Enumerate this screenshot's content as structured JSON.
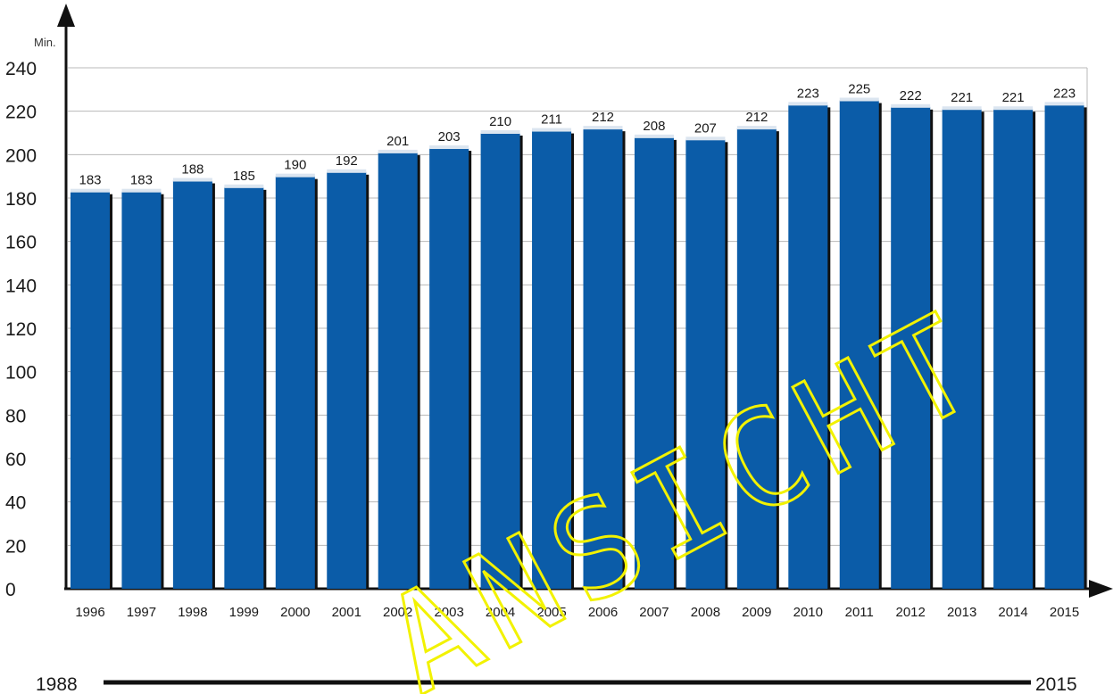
{
  "chart_data": {
    "type": "bar",
    "categories": [
      "1996",
      "1997",
      "1998",
      "1999",
      "2000",
      "2001",
      "2002",
      "2003",
      "2004",
      "2005",
      "2006",
      "2007",
      "2008",
      "2009",
      "2010",
      "2011",
      "2012",
      "2013",
      "2014",
      "2015"
    ],
    "values": [
      183,
      183,
      188,
      185,
      190,
      192,
      201,
      203,
      210,
      211,
      212,
      208,
      207,
      212,
      223,
      225,
      222,
      221,
      221,
      223
    ],
    "data_labels": [
      "183",
      "183",
      "188",
      "185",
      "190",
      "192",
      "201",
      "203",
      "210",
      "211",
      "212",
      "208",
      "207",
      "212",
      "223",
      "225",
      "222",
      "221",
      "221",
      "223"
    ],
    "yticks": [
      "0",
      "20",
      "40",
      "60",
      "80",
      "100",
      "120",
      "140",
      "160",
      "180",
      "200",
      "220",
      "240"
    ],
    "ylim": [
      0,
      240
    ],
    "ylabel": "Min.",
    "xlabel": "",
    "title": "",
    "grid": true,
    "bar_color": "#0b5ca8",
    "bar_top_color": "#dbe5f0",
    "shadow_color": "#111111"
  },
  "timeline": {
    "start_label": "1988",
    "end_label": "2015"
  },
  "watermark": {
    "text": "ANSICHT",
    "color": "#f2f200"
  }
}
